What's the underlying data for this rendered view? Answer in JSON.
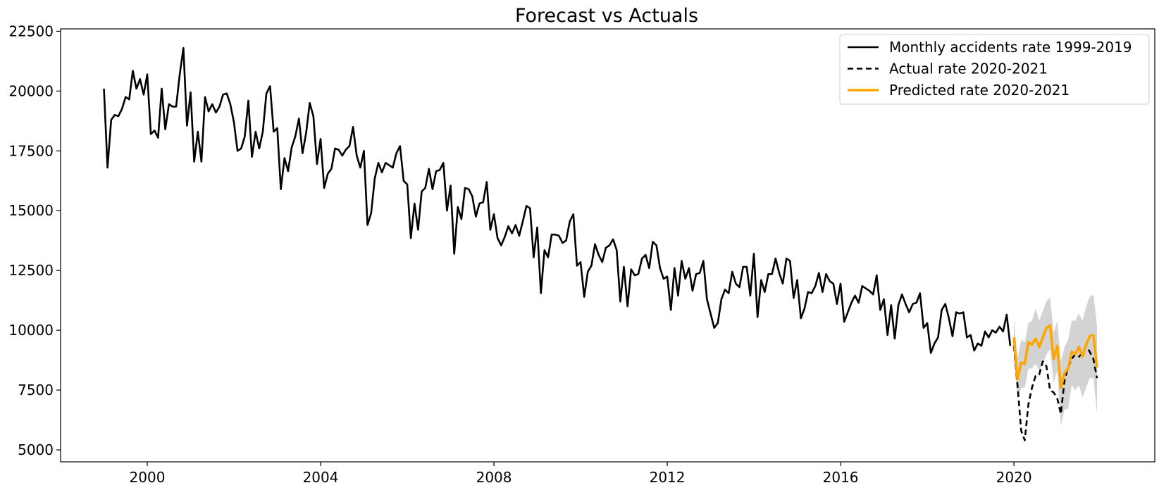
{
  "chart_data": {
    "type": "line",
    "title": "Forecast vs Actuals",
    "xlabel": "",
    "ylabel": "",
    "xlim": [
      1998.0,
      2023.25
    ],
    "ylim": [
      4500,
      22600
    ],
    "x_ticks": [
      2000,
      2004,
      2008,
      2012,
      2016,
      2020
    ],
    "y_ticks": [
      5000,
      7500,
      10000,
      12500,
      15000,
      17500,
      20000,
      22500
    ],
    "grid": false,
    "legend_position": "upper right",
    "series": [
      {
        "name": "Monthly accidents rate 1999-2019",
        "style": "solid",
        "color": "#000000",
        "x_start": 1999.0,
        "x_step": 0.08333,
        "values": [
          20100,
          16800,
          18800,
          19000,
          18950,
          19250,
          19750,
          19650,
          20850,
          20100,
          20500,
          19850,
          20700,
          18200,
          18350,
          18050,
          20100,
          18400,
          19450,
          19350,
          19350,
          20700,
          21800,
          18550,
          19950,
          17050,
          18300,
          17050,
          19750,
          19150,
          19450,
          19100,
          19350,
          19850,
          19900,
          19450,
          18700,
          17500,
          17600,
          18100,
          19600,
          17250,
          18300,
          17600,
          18300,
          19900,
          20200,
          18300,
          18450,
          15900,
          17200,
          16650,
          17650,
          18100,
          18850,
          17400,
          18250,
          19500,
          18950,
          16950,
          18000,
          15950,
          16550,
          16750,
          17600,
          17550,
          17300,
          17550,
          17700,
          18500,
          17300,
          16800,
          17500,
          14400,
          14900,
          16350,
          17000,
          16600,
          17000,
          16900,
          16800,
          17400,
          17700,
          16250,
          16100,
          13850,
          15300,
          14200,
          15800,
          15950,
          16750,
          15900,
          16650,
          16700,
          17000,
          15000,
          16050,
          13200,
          15150,
          14650,
          15950,
          15900,
          15600,
          14750,
          15300,
          15350,
          16200,
          14200,
          14850,
          13850,
          13550,
          13900,
          14350,
          14050,
          14400,
          13950,
          14550,
          15200,
          15100,
          13050,
          14300,
          11550,
          13350,
          13050,
          14000,
          14000,
          13950,
          13650,
          13750,
          14550,
          14850,
          12700,
          12850,
          11400,
          12450,
          12700,
          13600,
          13150,
          12850,
          13450,
          13550,
          13800,
          13350,
          11200,
          12650,
          11000,
          12550,
          12300,
          12350,
          13000,
          13150,
          12600,
          13700,
          13550,
          12600,
          12150,
          12250,
          10850,
          12600,
          11450,
          12900,
          12150,
          12600,
          11650,
          12350,
          12400,
          12900,
          11300,
          10700,
          10100,
          10300,
          11300,
          11700,
          11550,
          12450,
          11950,
          11800,
          12650,
          12650,
          11450,
          13200,
          10550,
          12100,
          11600,
          12350,
          12350,
          13000,
          12400,
          11950,
          13000,
          12900,
          11350,
          12100,
          10500,
          10900,
          11600,
          11550,
          11850,
          12400,
          11600,
          12350,
          12050,
          11950,
          11100,
          11950,
          10350,
          10750,
          11150,
          11450,
          11150,
          11850,
          11750,
          11650,
          11500,
          12300,
          10850,
          11300,
          9800,
          11050,
          9650,
          11050,
          11500,
          11100,
          10750,
          11100,
          11150,
          11550,
          10100,
          10300,
          9050,
          9450,
          9700,
          10850,
          11100,
          10500,
          9750,
          10750,
          10700,
          10750,
          9700,
          9800,
          9150,
          9450,
          9350,
          9950,
          9700,
          10000,
          9900,
          10150,
          9950,
          10650,
          9350
        ]
      },
      {
        "name": "Actual rate 2020-2021",
        "style": "dashed",
        "color": "#000000",
        "x_start": 2020.0,
        "x_step": 0.08333,
        "values": [
          9350,
          7700,
          5800,
          5400,
          6900,
          7600,
          8100,
          8150,
          8700,
          8500,
          7500,
          7400,
          7150,
          6500,
          7900,
          8450,
          8800,
          9000,
          8900,
          9050,
          9350,
          9100,
          8800,
          8000
        ]
      },
      {
        "name": "Predicted rate 2020-2021",
        "style": "solid",
        "color": "#FFA500",
        "x_start": 2020.0,
        "x_step": 0.08333,
        "values": [
          9700,
          7950,
          8650,
          8600,
          9500,
          9400,
          9650,
          9300,
          9700,
          10100,
          10200,
          8800,
          9350,
          7600,
          8200,
          8400,
          9100,
          9000,
          9300,
          8900,
          9400,
          9750,
          9800,
          8450
        ],
        "band_upper": [
          10500,
          8800,
          9600,
          9500,
          10300,
          10400,
          10900,
          10400,
          10800,
          11200,
          11400,
          9900,
          10400,
          8700,
          9300,
          9600,
          10400,
          10400,
          10700,
          10400,
          11000,
          11400,
          11500,
          10200
        ],
        "band_lower": [
          8800,
          7100,
          7600,
          7600,
          8400,
          8400,
          8600,
          8300,
          8600,
          9000,
          9200,
          7800,
          8300,
          6000,
          6700,
          6700,
          7700,
          7500,
          7700,
          7200,
          7600,
          8000,
          8000,
          6500
        ],
        "band_color": "#c8c8c8"
      }
    ]
  }
}
